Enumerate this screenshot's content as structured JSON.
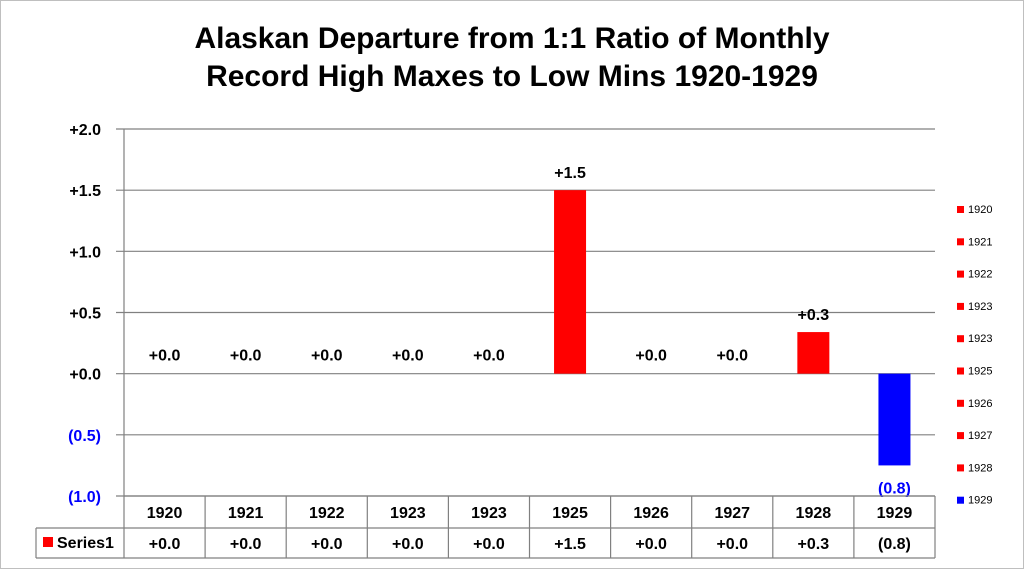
{
  "chart_data": {
    "type": "bar",
    "title_lines": [
      "Alaskan Departure from 1:1 Ratio of Monthly",
      "Record High Maxes to Low Mins 1920-1929"
    ],
    "categories": [
      "1920",
      "1921",
      "1922",
      "1923",
      "1923",
      "1925",
      "1926",
      "1927",
      "1928",
      "1929"
    ],
    "series": [
      {
        "name": "Series1",
        "values": [
          0.0,
          0.0,
          0.0,
          0.0,
          0.0,
          1.5,
          0.0,
          0.0,
          0.34,
          -0.75
        ],
        "value_labels": [
          "+0.0",
          "+0.0",
          "+0.0",
          "+0.0",
          "+0.0",
          "+1.5",
          "+0.0",
          "+0.0",
          "+0.3",
          "(0.8)"
        ]
      }
    ],
    "ylim": [
      -1.0,
      2.0
    ],
    "yticks": [
      {
        "value": 2.0,
        "label": "+2.0"
      },
      {
        "value": 1.5,
        "label": "+1.5"
      },
      {
        "value": 1.0,
        "label": "+1.0"
      },
      {
        "value": 0.5,
        "label": "+0.5"
      },
      {
        "value": 0.0,
        "label": "+0.0"
      },
      {
        "value": -0.5,
        "label": "(0.5)"
      },
      {
        "value": -1.0,
        "label": "(1.0)"
      }
    ],
    "legend": {
      "placement": "right",
      "entries": [
        "1920",
        "1921",
        "1922",
        "1923",
        "1923",
        "1925",
        "1926",
        "1927",
        "1928",
        "1929"
      ]
    },
    "data_table": true,
    "grid": true,
    "colors": {
      "positive": "#ff0000",
      "negative": "#0000ff",
      "negative_text": "#0000ff",
      "grid": "#808080",
      "text": "#000000"
    }
  }
}
